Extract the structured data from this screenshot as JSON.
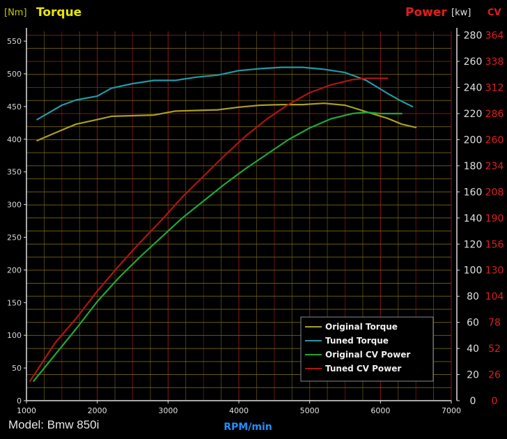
{
  "header": {
    "left_unit": "[Nm]",
    "left_title": "Torque",
    "right_title": "Power",
    "right_unit_kw": "[kw]",
    "right_unit_cv": "CV"
  },
  "footer": {
    "model": "Model: Bmw 850i"
  },
  "colors": {
    "background": "#000000",
    "grid": "#7a6a12",
    "grid_red": "#a01818",
    "torque_axis": "#d8d8d8",
    "kw_axis": "#e0e0e0",
    "cv_axis": "#e01e1e",
    "xlabel": "#1e90ff",
    "original_torque": "#a8a020",
    "tuned_torque": "#1f9aa8",
    "original_power": "#1fa83a",
    "tuned_power": "#b01414"
  },
  "chart_data": {
    "type": "line",
    "xlabel": "RPM/min",
    "x_ticks": [
      1000,
      2000,
      3000,
      4000,
      5000,
      6000,
      7000
    ],
    "x_range": [
      1000,
      7000
    ],
    "left_axis": {
      "label": "Torque",
      "unit": "[Nm]",
      "ticks": [
        0,
        50,
        100,
        150,
        200,
        250,
        300,
        350,
        400,
        450,
        500,
        550
      ]
    },
    "right_axis_kw": {
      "label": "Power",
      "unit": "kw",
      "ticks": [
        0,
        20,
        40,
        60,
        80,
        100,
        120,
        140,
        160,
        180,
        200,
        220,
        240,
        260,
        280
      ]
    },
    "right_axis_cv": {
      "unit": "CV",
      "ticks": [
        0,
        26,
        52,
        78,
        104,
        130,
        156,
        190,
        208,
        234,
        260,
        286,
        312,
        338,
        364
      ]
    },
    "legend_position": "bottom-right",
    "series": [
      {
        "name": "Original Torque",
        "axis": "torque",
        "x": [
          1150,
          1500,
          1700,
          2000,
          2200,
          2500,
          2800,
          3100,
          3400,
          3700,
          4000,
          4300,
          4600,
          4900,
          5200,
          5500,
          5800,
          6100,
          6300,
          6500
        ],
        "y": [
          398,
          414,
          423,
          430,
          435,
          436,
          437,
          443,
          444,
          445,
          449,
          452,
          453,
          453,
          455,
          452,
          442,
          432,
          423,
          418
        ]
      },
      {
        "name": "Tuned Torque",
        "axis": "torque",
        "x": [
          1150,
          1500,
          1700,
          2000,
          2200,
          2500,
          2800,
          3100,
          3400,
          3700,
          4000,
          4300,
          4600,
          4900,
          5200,
          5500,
          5800,
          6100,
          6300,
          6450
        ],
        "y": [
          430,
          452,
          460,
          466,
          478,
          485,
          490,
          490,
          495,
          498,
          505,
          508,
          510,
          510,
          507,
          502,
          490,
          470,
          458,
          450
        ]
      },
      {
        "name": "Original CV Power",
        "axis": "kw",
        "x": [
          1100,
          1400,
          1700,
          2000,
          2300,
          2600,
          2900,
          3200,
          3500,
          3800,
          4100,
          4400,
          4700,
          5000,
          5300,
          5600,
          5800,
          6000,
          6300
        ],
        "y": [
          15,
          35,
          55,
          76,
          94,
          110,
          125,
          140,
          153,
          166,
          178,
          189,
          200,
          209,
          216,
          220,
          221,
          220,
          220
        ]
      },
      {
        "name": "Tuned CV Power",
        "axis": "kw",
        "x": [
          1050,
          1400,
          1700,
          2000,
          2300,
          2600,
          2900,
          3200,
          3500,
          3800,
          4100,
          4400,
          4700,
          5000,
          5300,
          5600,
          5800,
          6000,
          6100
        ],
        "y": [
          15,
          44,
          63,
          84,
          103,
          121,
          138,
          156,
          172,
          188,
          203,
          216,
          227,
          236,
          242,
          246,
          247,
          247,
          247
        ]
      }
    ]
  }
}
